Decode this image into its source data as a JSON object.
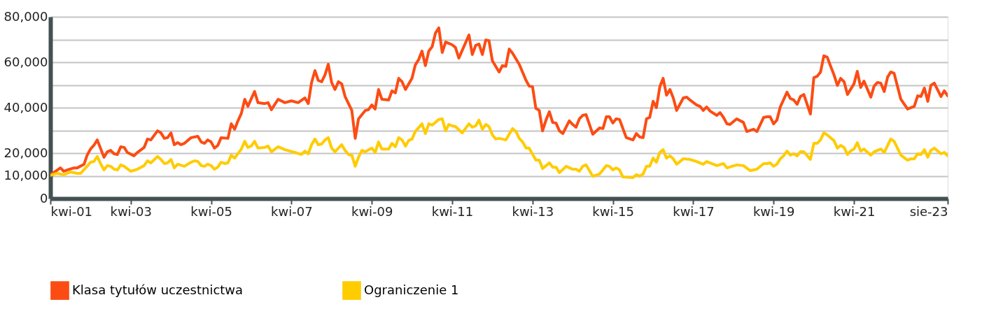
{
  "chart_data": {
    "type": "line",
    "xlim": [
      "2001-04",
      "2023-08"
    ],
    "xticks": [
      {
        "value": "2001-04",
        "label": "kwi-01"
      },
      {
        "value": "2003-04",
        "label": "kwi-03"
      },
      {
        "value": "2005-04",
        "label": "kwi-05"
      },
      {
        "value": "2007-04",
        "label": "kwi-07"
      },
      {
        "value": "2009-04",
        "label": "kwi-09"
      },
      {
        "value": "2011-04",
        "label": "kwi-11"
      },
      {
        "value": "2013-04",
        "label": "kwi-13"
      },
      {
        "value": "2015-04",
        "label": "kwi-15"
      },
      {
        "value": "2017-04",
        "label": "kwi-17"
      },
      {
        "value": "2019-04",
        "label": "kwi-19"
      },
      {
        "value": "2021-04",
        "label": "kwi-21"
      },
      {
        "value": "2023-08",
        "label": "sie-23"
      }
    ],
    "ylim": [
      0,
      80000
    ],
    "yticks": [
      {
        "value": 0,
        "label": "0"
      },
      {
        "value": 10000,
        "label": "10,000"
      },
      {
        "value": 20000,
        "label": "20,000"
      },
      {
        "value": 30000,
        "label": null
      },
      {
        "value": 40000,
        "label": "40,000"
      },
      {
        "value": 50000,
        "label": null
      },
      {
        "value": 60000,
        "label": "60,000"
      },
      {
        "value": 70000,
        "label": null
      },
      {
        "value": 80000,
        "label": "80,000"
      }
    ],
    "grid": "y",
    "legend": "bottom",
    "line_style": "solid",
    "series": [
      {
        "name": "Klasa tytułów uczestnictwa",
        "color": "#fc4c14",
        "x": [
          "2001-04",
          "2001-05",
          "2001-07",
          "2001-08",
          "2001-09",
          "2001-11",
          "2001-12",
          "2002-02",
          "2002-03",
          "2002-04",
          "2002-05",
          "2002-06",
          "2002-08",
          "2002-09",
          "2002-10",
          "2002-11",
          "2002-12",
          "2003-01",
          "2003-02",
          "2003-03",
          "2003-05",
          "2003-06",
          "2003-08",
          "2003-09",
          "2003-10",
          "2003-12",
          "2004-01",
          "2004-02",
          "2004-03",
          "2004-04",
          "2004-05",
          "2004-06",
          "2004-07",
          "2004-08",
          "2004-10",
          "2004-12",
          "2005-01",
          "2005-02",
          "2005-03",
          "2005-04",
          "2005-05",
          "2005-06",
          "2005-07",
          "2005-09",
          "2005-10",
          "2005-11",
          "2005-12",
          "2006-01",
          "2006-02",
          "2006-03",
          "2006-05",
          "2006-06",
          "2006-08",
          "2006-09",
          "2006-10",
          "2006-12",
          "2007-02",
          "2007-04",
          "2007-06",
          "2007-08",
          "2007-09",
          "2007-10",
          "2007-11",
          "2007-12",
          "2008-01",
          "2008-02",
          "2008-03",
          "2008-04",
          "2008-05",
          "2008-06",
          "2008-07",
          "2008-08",
          "2008-10",
          "2008-11",
          "2008-12",
          "2009-02",
          "2009-03",
          "2009-04",
          "2009-05",
          "2009-06",
          "2009-07",
          "2009-09",
          "2009-10",
          "2009-11",
          "2009-12",
          "2010-01",
          "2010-02",
          "2010-04",
          "2010-05",
          "2010-06",
          "2010-07",
          "2010-08",
          "2010-09",
          "2010-10",
          "2010-11",
          "2010-12",
          "2011-01",
          "2011-02",
          "2011-04",
          "2011-05",
          "2011-06",
          "2011-09",
          "2011-10",
          "2011-11",
          "2011-12",
          "2012-01",
          "2012-02",
          "2012-03",
          "2012-04",
          "2012-06",
          "2012-07",
          "2012-08",
          "2012-09",
          "2012-10",
          "2012-12",
          "2013-02",
          "2013-03",
          "2013-04",
          "2013-05",
          "2013-06",
          "2013-07",
          "2013-08",
          "2013-09",
          "2013-10",
          "2013-11",
          "2013-12",
          "2014-01",
          "2014-03",
          "2014-04",
          "2014-05",
          "2014-06",
          "2014-07",
          "2014-08",
          "2014-10",
          "2014-12",
          "2015-01",
          "2015-02",
          "2015-03",
          "2015-04",
          "2015-05",
          "2015-06",
          "2015-08",
          "2015-10",
          "2015-11",
          "2015-12",
          "2016-01",
          "2016-02",
          "2016-03",
          "2016-04",
          "2016-05",
          "2016-06",
          "2016-07",
          "2016-08",
          "2016-09",
          "2016-10",
          "2016-11",
          "2017-01",
          "2017-02",
          "2017-03",
          "2017-05",
          "2017-06",
          "2017-07",
          "2017-08",
          "2017-09",
          "2017-11",
          "2017-12",
          "2018-01",
          "2018-02",
          "2018-03",
          "2018-05",
          "2018-07",
          "2018-08",
          "2018-10",
          "2018-11",
          "2019-01",
          "2019-02",
          "2019-03",
          "2019-04",
          "2019-05",
          "2019-06",
          "2019-08",
          "2019-09",
          "2019-10",
          "2019-11",
          "2019-12",
          "2020-01",
          "2020-03",
          "2020-04",
          "2020-05",
          "2020-06",
          "2020-07",
          "2020-08",
          "2020-09",
          "2020-10",
          "2020-11",
          "2020-12",
          "2021-01",
          "2021-02",
          "2021-04",
          "2021-05",
          "2021-06",
          "2021-07",
          "2021-09",
          "2021-10",
          "2021-11",
          "2021-12",
          "2022-01",
          "2022-02",
          "2022-03",
          "2022-04",
          "2022-06",
          "2022-08",
          "2022-10",
          "2022-11",
          "2022-12",
          "2023-01",
          "2023-02",
          "2023-03",
          "2023-04",
          "2023-06",
          "2023-07",
          "2023-08"
        ],
        "values": [
          10500,
          11400,
          13500,
          12000,
          12600,
          13500,
          13500,
          15100,
          19100,
          21800,
          23400,
          25800,
          18200,
          20600,
          21200,
          19700,
          19400,
          22800,
          22500,
          20300,
          18800,
          20300,
          22500,
          26200,
          25800,
          29800,
          28900,
          26500,
          26800,
          28900,
          23700,
          24600,
          23700,
          24300,
          26800,
          27400,
          24900,
          24300,
          25800,
          24900,
          22200,
          23400,
          26800,
          26500,
          32900,
          30500,
          34200,
          37500,
          43700,
          40600,
          47100,
          42200,
          41800,
          42200,
          39100,
          43700,
          42200,
          43000,
          42200,
          44300,
          41800,
          51000,
          56300,
          52000,
          51400,
          54500,
          59100,
          51000,
          48000,
          51400,
          50500,
          44900,
          38800,
          26500,
          35100,
          38800,
          39100,
          41200,
          39400,
          48000,
          43700,
          43400,
          47400,
          46500,
          52900,
          51400,
          48000,
          52900,
          58800,
          61200,
          64900,
          58500,
          64900,
          66800,
          72900,
          75100,
          64300,
          68900,
          67700,
          66500,
          61800,
          72000,
          63400,
          67400,
          68000,
          63400,
          69800,
          69500,
          60600,
          55700,
          58500,
          58200,
          65800,
          64000,
          59100,
          52000,
          49500,
          49200,
          39700,
          38800,
          29800,
          34500,
          38200,
          33500,
          33200,
          29800,
          28600,
          34200,
          32600,
          31400,
          35100,
          36600,
          36900,
          28300,
          31100,
          30800,
          36000,
          36000,
          33200,
          35100,
          34800,
          26800,
          25800,
          28600,
          27100,
          26800,
          35100,
          35700,
          42800,
          40000,
          49200,
          52900,
          45500,
          48000,
          44300,
          38800,
          44300,
          44600,
          43400,
          41200,
          40600,
          38800,
          40300,
          38500,
          36600,
          37800,
          35700,
          32900,
          32600,
          35100,
          33500,
          29500,
          30500,
          29500,
          35700,
          36000,
          36000,
          32900,
          34500,
          40300,
          46800,
          44000,
          43400,
          41500,
          44900,
          45800,
          37200,
          53200,
          53800,
          55700,
          62800,
          62200,
          58200,
          54500,
          49800,
          52900,
          51400,
          45800,
          50500,
          56000,
          48900,
          51700,
          44600,
          49500,
          51100,
          50800,
          47100,
          53500,
          55700,
          55100,
          43700,
          39400,
          40600,
          45200,
          44900,
          48600,
          42800,
          49800,
          50800,
          44900,
          47400,
          45200
        ]
      },
      {
        "name": "Ograniczenie 1",
        "color": "#ffcc00",
        "x": [
          "2001-04",
          "2001-06",
          "2001-08",
          "2001-10",
          "2001-12",
          "2002-01",
          "2002-03",
          "2002-04",
          "2002-05",
          "2002-06",
          "2002-07",
          "2002-08",
          "2002-09",
          "2002-10",
          "2002-11",
          "2002-12",
          "2003-01",
          "2003-02",
          "2003-04",
          "2003-06",
          "2003-08",
          "2003-09",
          "2003-10",
          "2003-12",
          "2004-01",
          "2004-02",
          "2004-03",
          "2004-04",
          "2004-05",
          "2004-06",
          "2004-08",
          "2004-10",
          "2004-11",
          "2004-12",
          "2005-01",
          "2005-02",
          "2005-03",
          "2005-04",
          "2005-05",
          "2005-06",
          "2005-07",
          "2005-08",
          "2005-09",
          "2005-10",
          "2005-11",
          "2006-01",
          "2006-02",
          "2006-03",
          "2006-04",
          "2006-05",
          "2006-06",
          "2006-08",
          "2006-09",
          "2006-10",
          "2006-12",
          "2007-02",
          "2007-05",
          "2007-07",
          "2007-08",
          "2007-09",
          "2007-10",
          "2007-11",
          "2007-12",
          "2008-01",
          "2008-02",
          "2008-03",
          "2008-04",
          "2008-05",
          "2008-07",
          "2008-08",
          "2008-09",
          "2008-10",
          "2008-11",
          "2008-12",
          "2009-01",
          "2009-02",
          "2009-04",
          "2009-05",
          "2009-06",
          "2009-07",
          "2009-09",
          "2009-10",
          "2009-11",
          "2009-12",
          "2010-01",
          "2010-02",
          "2010-03",
          "2010-04",
          "2010-05",
          "2010-07",
          "2010-08",
          "2010-09",
          "2010-10",
          "2010-12",
          "2011-01",
          "2011-02",
          "2011-03",
          "2011-04",
          "2011-05",
          "2011-07",
          "2011-09",
          "2011-10",
          "2011-11",
          "2011-12",
          "2012-01",
          "2012-02",
          "2012-03",
          "2012-04",
          "2012-05",
          "2012-06",
          "2012-08",
          "2012-10",
          "2012-11",
          "2012-12",
          "2013-01",
          "2013-02",
          "2013-03",
          "2013-05",
          "2013-06",
          "2013-07",
          "2013-09",
          "2013-10",
          "2013-11",
          "2013-12",
          "2014-02",
          "2014-04",
          "2014-05",
          "2014-06",
          "2014-07",
          "2014-08",
          "2014-10",
          "2014-12",
          "2015-02",
          "2015-03",
          "2015-04",
          "2015-05",
          "2015-06",
          "2015-07",
          "2015-10",
          "2015-11",
          "2015-12",
          "2016-01",
          "2016-02",
          "2016-03",
          "2016-04",
          "2016-05",
          "2016-06",
          "2016-07",
          "2016-08",
          "2016-09",
          "2016-10",
          "2016-11",
          "2017-01",
          "2017-03",
          "2017-05",
          "2017-07",
          "2017-08",
          "2017-10",
          "2017-11",
          "2018-01",
          "2018-02",
          "2018-05",
          "2018-07",
          "2018-09",
          "2018-11",
          "2019-01",
          "2019-02",
          "2019-03",
          "2019-04",
          "2019-05",
          "2019-06",
          "2019-07",
          "2019-08",
          "2019-09",
          "2019-10",
          "2019-11",
          "2019-12",
          "2020-01",
          "2020-03",
          "2020-04",
          "2020-05",
          "2020-06",
          "2020-07",
          "2020-08",
          "2020-10",
          "2020-11",
          "2020-12",
          "2021-01",
          "2021-02",
          "2021-03",
          "2021-04",
          "2021-05",
          "2021-06",
          "2021-07",
          "2021-09",
          "2021-10",
          "2021-12",
          "2022-01",
          "2022-03",
          "2022-04",
          "2022-06",
          "2022-08",
          "2022-09",
          "2022-10",
          "2022-11",
          "2022-12",
          "2023-01",
          "2023-02",
          "2023-03",
          "2023-04",
          "2023-06",
          "2023-07",
          "2023-08"
        ],
        "values": [
          10200,
          11100,
          10500,
          11700,
          11100,
          11100,
          14200,
          16000,
          16300,
          18500,
          15400,
          12600,
          14500,
          14200,
          12900,
          12600,
          14800,
          14200,
          12000,
          12900,
          14500,
          16600,
          15700,
          18500,
          17200,
          15400,
          15700,
          17200,
          13500,
          15100,
          14200,
          16000,
          16600,
          16300,
          14500,
          14200,
          15100,
          14500,
          12900,
          13800,
          16000,
          15400,
          15700,
          19100,
          17800,
          21800,
          25200,
          22500,
          23100,
          25200,
          22200,
          22500,
          23100,
          20600,
          22800,
          21500,
          20300,
          19400,
          20900,
          19700,
          23700,
          26200,
          23700,
          24000,
          25800,
          26800,
          22200,
          20600,
          23700,
          21200,
          19400,
          19100,
          14200,
          18200,
          21200,
          20600,
          22200,
          20300,
          24900,
          21800,
          21800,
          24300,
          22800,
          26800,
          25800,
          23100,
          25500,
          26200,
          29500,
          32900,
          28600,
          32900,
          32300,
          34800,
          35100,
          29800,
          32600,
          32000,
          31700,
          28900,
          32900,
          31400,
          32000,
          34500,
          30500,
          32600,
          31700,
          28000,
          26200,
          26500,
          25800,
          30800,
          29500,
          26500,
          24900,
          22200,
          22200,
          16900,
          16900,
          13200,
          15700,
          13800,
          13800,
          11400,
          14200,
          12900,
          12900,
          12000,
          14200,
          14800,
          9800,
          10800,
          14500,
          14200,
          12600,
          13500,
          12600,
          9500,
          9200,
          10500,
          9800,
          10800,
          14200,
          14200,
          17800,
          16000,
          20300,
          21500,
          17800,
          18800,
          17500,
          15100,
          17500,
          17200,
          16300,
          15100,
          16300,
          15100,
          14500,
          15400,
          13500,
          14800,
          14500,
          12300,
          12900,
          15400,
          15400,
          15700,
          14200,
          15100,
          17500,
          18800,
          20900,
          19100,
          19700,
          18800,
          20600,
          20600,
          17200,
          24300,
          24300,
          25800,
          28900,
          28000,
          25500,
          22200,
          23400,
          22500,
          19400,
          20900,
          21800,
          24600,
          20900,
          21800,
          19100,
          20600,
          21800,
          20300,
          26200,
          25200,
          19100,
          16900,
          17500,
          17500,
          19700,
          19400,
          21500,
          18200,
          21200,
          22200,
          19700,
          20300,
          18800
        ]
      }
    ]
  }
}
